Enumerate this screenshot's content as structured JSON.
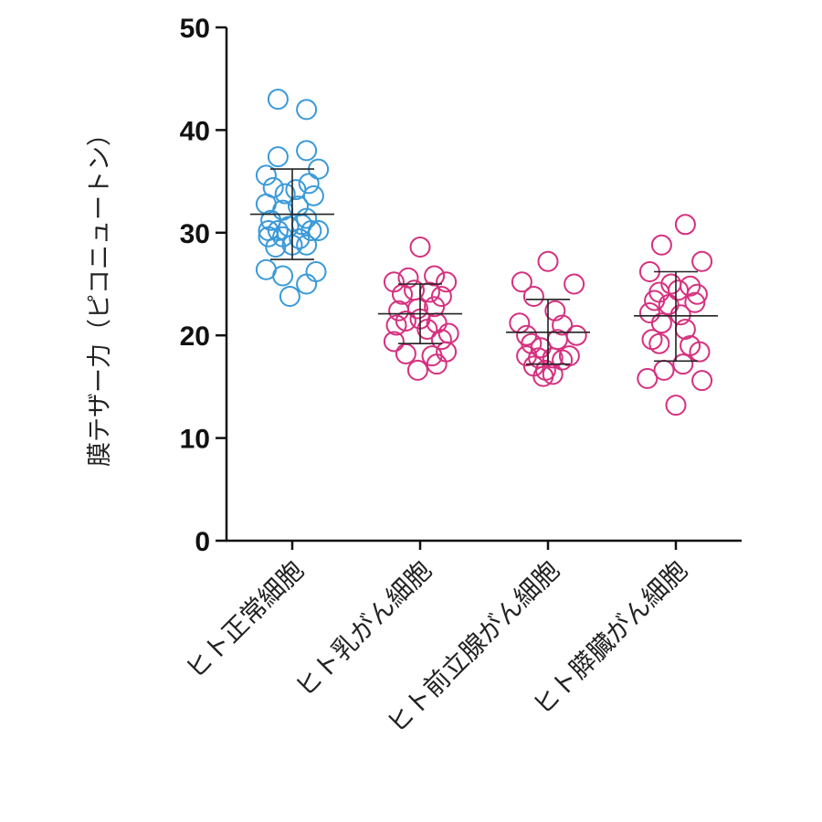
{
  "chart_data": {
    "type": "scatter",
    "ylabel": "膜テザー力（ピコニュートン）",
    "xlabel": "",
    "ylim": [
      0,
      50
    ],
    "yticks": [
      0,
      10,
      20,
      30,
      40,
      50
    ],
    "grid": false,
    "categories": [
      "ヒト正常細胞",
      "ヒト乳がん細胞",
      "ヒト前立腺がん細胞",
      "ヒト膵臓がん細胞"
    ],
    "series": [
      {
        "color": "#3a9ad9",
        "mean": 31.8,
        "sd_low": 27.4,
        "sd_high": 36.2,
        "points": [
          [
            -0.12,
            43.0
          ],
          [
            0.12,
            42.0
          ],
          [
            -0.12,
            37.4
          ],
          [
            0.12,
            38.0
          ],
          [
            -0.22,
            35.6
          ],
          [
            -0.16,
            34.4
          ],
          [
            -0.06,
            33.8
          ],
          [
            0.03,
            34.2
          ],
          [
            0.14,
            34.8
          ],
          [
            0.22,
            36.2
          ],
          [
            -0.22,
            32.8
          ],
          [
            -0.08,
            32.2
          ],
          [
            0.05,
            32.6
          ],
          [
            0.18,
            33.6
          ],
          [
            -0.18,
            31.2
          ],
          [
            0.12,
            31.4
          ],
          [
            -0.2,
            30.2
          ],
          [
            -0.12,
            30.2
          ],
          [
            -0.03,
            30.6
          ],
          [
            0.08,
            30.8
          ],
          [
            -0.2,
            29.6
          ],
          [
            -0.08,
            29.6
          ],
          [
            0.06,
            29.4
          ],
          [
            0.16,
            30.2
          ],
          [
            0.22,
            30.2
          ],
          [
            -0.14,
            28.6
          ],
          [
            0.0,
            28.8
          ],
          [
            0.12,
            28.8
          ],
          [
            -0.22,
            26.4
          ],
          [
            0.2,
            26.2
          ],
          [
            -0.08,
            25.8
          ],
          [
            0.12,
            25.0
          ],
          [
            -0.02,
            23.8
          ]
        ]
      },
      {
        "color": "#d6307f",
        "mean": 22.1,
        "sd_low": 19.2,
        "sd_high": 25.0,
        "points": [
          [
            0.0,
            28.6
          ],
          [
            -0.22,
            25.2
          ],
          [
            -0.1,
            25.6
          ],
          [
            0.12,
            25.8
          ],
          [
            0.22,
            25.2
          ],
          [
            -0.15,
            24.0
          ],
          [
            -0.05,
            24.4
          ],
          [
            0.08,
            24.2
          ],
          [
            0.18,
            23.8
          ],
          [
            -0.18,
            22.4
          ],
          [
            -0.02,
            22.6
          ],
          [
            0.12,
            22.8
          ],
          [
            -0.12,
            21.4
          ],
          [
            0.0,
            21.6
          ],
          [
            0.14,
            21.2
          ],
          [
            -0.2,
            21.0
          ],
          [
            0.06,
            20.6
          ],
          [
            0.24,
            20.2
          ],
          [
            -0.22,
            19.4
          ],
          [
            0.18,
            19.6
          ],
          [
            -0.12,
            18.2
          ],
          [
            0.1,
            18.0
          ],
          [
            0.22,
            18.4
          ],
          [
            0.14,
            17.2
          ],
          [
            -0.02,
            16.6
          ]
        ]
      },
      {
        "color": "#d6307f",
        "mean": 20.3,
        "sd_low": 17.2,
        "sd_high": 23.5,
        "points": [
          [
            0.0,
            27.2
          ],
          [
            -0.22,
            25.2
          ],
          [
            0.22,
            25.0
          ],
          [
            -0.12,
            23.8
          ],
          [
            0.06,
            22.4
          ],
          [
            -0.24,
            21.2
          ],
          [
            0.12,
            21.0
          ],
          [
            -0.18,
            20.0
          ],
          [
            0.24,
            20.0
          ],
          [
            -0.14,
            19.2
          ],
          [
            0.08,
            19.6
          ],
          [
            -0.06,
            18.8
          ],
          [
            -0.18,
            18.0
          ],
          [
            0.18,
            18.0
          ],
          [
            -0.08,
            17.8
          ],
          [
            0.04,
            17.8
          ],
          [
            0.12,
            17.6
          ],
          [
            -0.12,
            17.0
          ],
          [
            -0.02,
            16.6
          ],
          [
            0.04,
            16.2
          ],
          [
            -0.04,
            16.0
          ]
        ]
      },
      {
        "color": "#d6307f",
        "mean": 21.9,
        "sd_low": 17.5,
        "sd_high": 26.2,
        "points": [
          [
            0.08,
            30.8
          ],
          [
            -0.12,
            28.8
          ],
          [
            0.22,
            27.2
          ],
          [
            -0.22,
            26.2
          ],
          [
            -0.04,
            25.0
          ],
          [
            0.12,
            24.8
          ],
          [
            -0.14,
            24.2
          ],
          [
            0.02,
            24.4
          ],
          [
            0.18,
            24.0
          ],
          [
            -0.18,
            23.4
          ],
          [
            -0.06,
            23.0
          ],
          [
            0.16,
            23.2
          ],
          [
            -0.22,
            22.2
          ],
          [
            0.04,
            22.0
          ],
          [
            -0.12,
            21.2
          ],
          [
            0.08,
            20.6
          ],
          [
            -0.2,
            19.6
          ],
          [
            -0.14,
            19.2
          ],
          [
            0.12,
            19.0
          ],
          [
            0.2,
            18.4
          ],
          [
            0.06,
            17.2
          ],
          [
            -0.1,
            16.6
          ],
          [
            -0.24,
            15.8
          ],
          [
            0.22,
            15.6
          ],
          [
            0.0,
            13.2
          ]
        ]
      }
    ]
  }
}
